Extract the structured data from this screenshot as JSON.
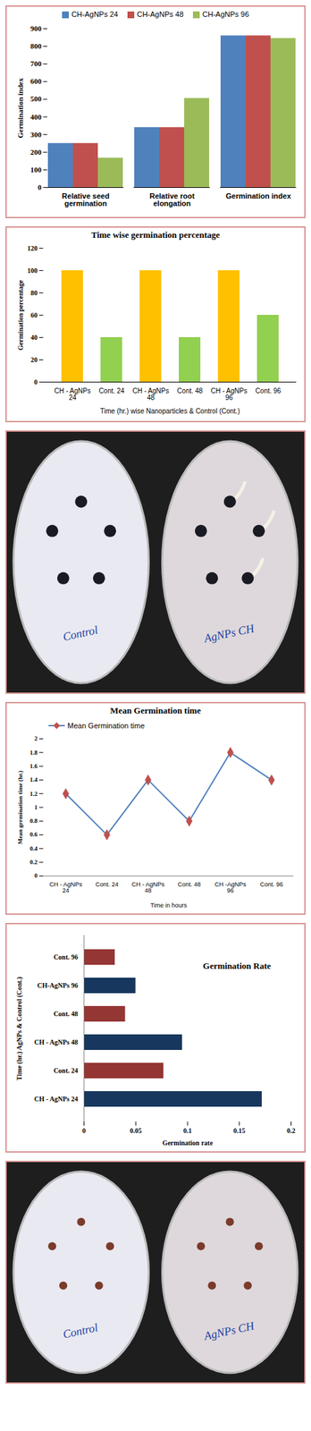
{
  "chart_data": [
    {
      "type": "bar",
      "legend": "top",
      "grid": false,
      "categories": [
        "Relative seed germination",
        "Relative root elongation",
        "Germination index"
      ],
      "series": [
        {
          "name": "CH-AgNPs 24",
          "color": "#4f81bd",
          "values": [
            250,
            340,
            860
          ]
        },
        {
          "name": "CH-AgNPs 48",
          "color": "#c0504d",
          "values": [
            250,
            340,
            860
          ]
        },
        {
          "name": "CH-AgNPs 96",
          "color": "#9bbb59",
          "values": [
            167,
            505,
            845
          ]
        }
      ],
      "ylabel": "Germination index",
      "ylim": [
        0,
        900
      ],
      "yticks": [
        0,
        100,
        200,
        300,
        400,
        500,
        600,
        700,
        800,
        900
      ]
    },
    {
      "type": "bar",
      "title": "Time wise germination percentage",
      "grid": false,
      "categories": [
        "CH - AgNPs 24",
        "Cont. 24",
        "CH - AgNPs 48",
        "Cont. 48",
        "CH - AgNPs 96",
        "Cont. 96"
      ],
      "values": [
        100,
        40,
        100,
        40,
        100,
        60
      ],
      "colors": [
        "#ffc000",
        "#92d050",
        "#ffc000",
        "#92d050",
        "#ffc000",
        "#92d050"
      ],
      "xlabel": "Time (hr.) wise Nanoparticles & Control (Cont.)",
      "ylabel": "Germination percentage",
      "ylim": [
        0,
        120
      ],
      "yticks": [
        0,
        20,
        40,
        60,
        80,
        100,
        120
      ]
    },
    {
      "type": "line",
      "title": "Mean Germination time",
      "legend": "top",
      "grid": false,
      "categories": [
        "CH - AgNPs 24",
        "Cont. 24",
        "CH - AgNPs 48",
        "Cont. 48",
        "CH -AgNPs 96",
        "Cont. 96"
      ],
      "series": [
        {
          "name": "Mean Germination time",
          "color": "#4f81bd",
          "marker": "diamond",
          "values": [
            1.2,
            0.6,
            1.4,
            0.8,
            1.8,
            1.4
          ]
        }
      ],
      "xlabel": "Time in hours",
      "ylabel": "Mean germination time (hr.)",
      "ylim": [
        0,
        2
      ],
      "yticks": [
        0,
        0.2,
        0.4,
        0.6,
        0.8,
        1,
        1.2,
        1.4,
        1.6,
        1.8,
        2
      ]
    },
    {
      "type": "bar",
      "title": "Germination Rate",
      "orientation": "horizontal",
      "grid": false,
      "categories": [
        "Cont. 96",
        "CH-AgNPs 96",
        "Cont. 48",
        "CH - AgNPs 48",
        "Cont. 24",
        "CH - AgNPs 24"
      ],
      "values": [
        0.03,
        0.05,
        0.04,
        0.095,
        0.077,
        0.172
      ],
      "colors": [
        "#943634",
        "#17375e",
        "#943634",
        "#17375e",
        "#943634",
        "#17375e"
      ],
      "xlabel": "Germination rate",
      "ylabel": "Time (hr.) AgNPs & Control (Cont.)",
      "xlim": [
        0,
        0.2
      ],
      "xticks": [
        0,
        0.05,
        0.1,
        0.15,
        0.2
      ]
    }
  ],
  "photos": [
    {
      "dishes": [
        {
          "label": "Control",
          "seeds": 5,
          "sprouted": 0
        },
        {
          "label": "AgNPs CH",
          "seeds": 5,
          "sprouted": 3
        }
      ]
    },
    {
      "dishes": [
        {
          "label": "Control",
          "seeds": 5,
          "sprouted": 0
        },
        {
          "label": "AgNPs CH",
          "seeds": 5,
          "sprouted": 0
        }
      ]
    }
  ]
}
